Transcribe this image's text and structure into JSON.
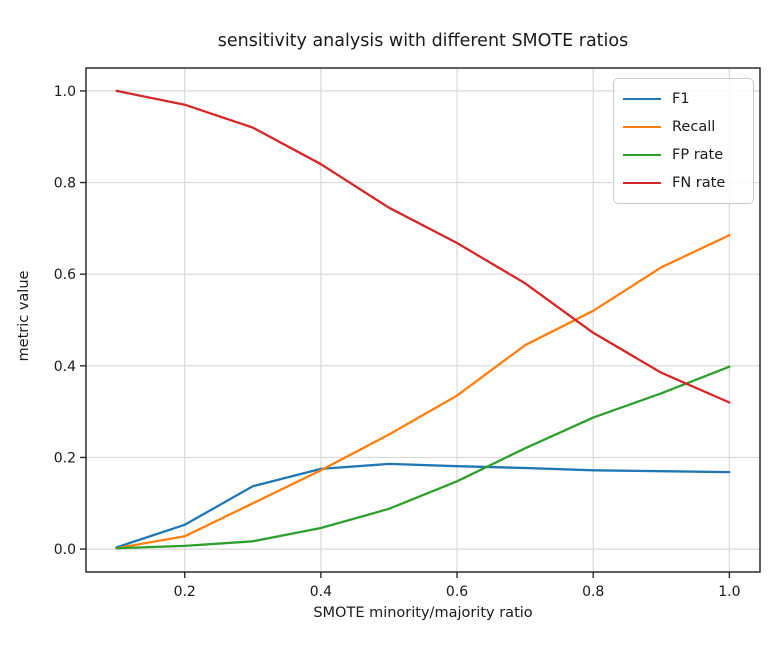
{
  "figure": {
    "title": "sensitivity analysis with different SMOTE ratios",
    "xlabel": "SMOTE minority/majority ratio",
    "ylabel": "metric value"
  },
  "chart_data": {
    "type": "line",
    "title": "sensitivity analysis with different SMOTE ratios",
    "xlabel": "SMOTE minority/majority ratio",
    "ylabel": "metric value",
    "x": [
      0.1,
      0.2,
      0.3,
      0.4,
      0.5,
      0.6,
      0.7,
      0.8,
      0.9,
      1.0
    ],
    "series": [
      {
        "name": "F1",
        "color": "#1f77b4",
        "values": [
          0.004,
          0.053,
          0.137,
          0.175,
          0.186,
          0.181,
          0.177,
          0.172,
          0.17,
          0.168
        ]
      },
      {
        "name": "Recall",
        "color": "#ff7f0e",
        "values": [
          0.002,
          0.028,
          0.1,
          0.172,
          0.25,
          0.335,
          0.445,
          0.52,
          0.615,
          0.685
        ]
      },
      {
        "name": "FP rate",
        "color": "#2ca02c",
        "values": [
          0.002,
          0.007,
          0.017,
          0.046,
          0.088,
          0.148,
          0.22,
          0.287,
          0.34,
          0.398
        ]
      },
      {
        "name": "FN rate",
        "color": "#d62728",
        "values": [
          1.0,
          0.97,
          0.92,
          0.84,
          0.745,
          0.668,
          0.58,
          0.472,
          0.385,
          0.32
        ]
      }
    ],
    "xticks": [
      0.2,
      0.4,
      0.6,
      0.8,
      1.0
    ],
    "xtick_labels": [
      "0.2",
      "0.4",
      "0.6",
      "0.8",
      "1.0"
    ],
    "yticks": [
      0.0,
      0.2,
      0.4,
      0.6,
      0.8,
      1.0
    ],
    "ytick_labels": [
      "0.0",
      "0.2",
      "0.4",
      "0.6",
      "0.8",
      "1.0"
    ],
    "xlim": [
      0.055,
      1.045
    ],
    "ylim": [
      -0.05,
      1.05
    ],
    "grid": true,
    "legend_position": "upper right",
    "legend": [
      "F1",
      "Recall",
      "FP rate",
      "FN rate"
    ]
  },
  "colors": {
    "background": "#ffffff",
    "grid": "#d9d9d9",
    "spine": "#2b2b2b",
    "tick": "#2b2b2b",
    "text": "#1a1a1a",
    "legend_border": "#cccccc"
  }
}
